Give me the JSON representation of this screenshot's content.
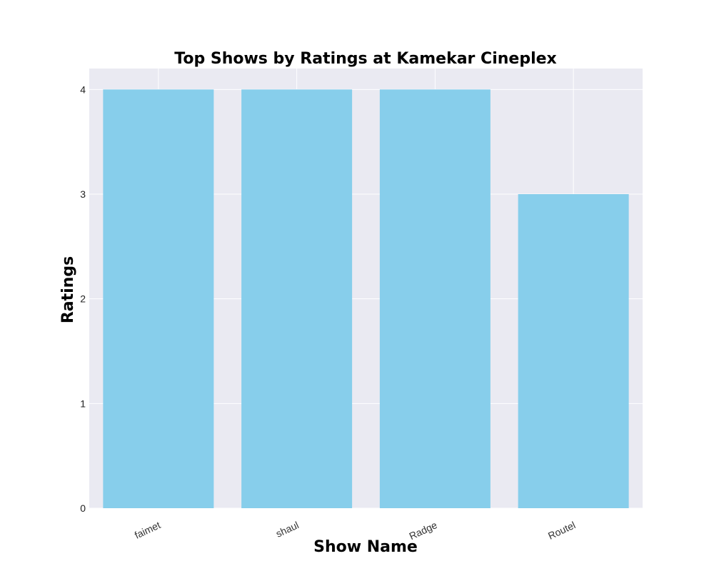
{
  "chart_data": {
    "type": "bar",
    "title": "Top Shows by Ratings at Kamekar Cineplex",
    "xlabel": "Show Name",
    "ylabel": "Ratings",
    "categories": [
      "faimet",
      "shaul",
      "Radge",
      "Routel"
    ],
    "values": [
      4,
      4,
      4,
      3
    ],
    "yticks": [
      "0",
      "1",
      "2",
      "3",
      "4"
    ],
    "ylim": [
      0,
      4.2
    ],
    "grid": true,
    "legend": "none",
    "colors": {
      "bar": "#87ceeb",
      "plot_background": "#eaeaf2",
      "grid": "#ffffff"
    }
  }
}
